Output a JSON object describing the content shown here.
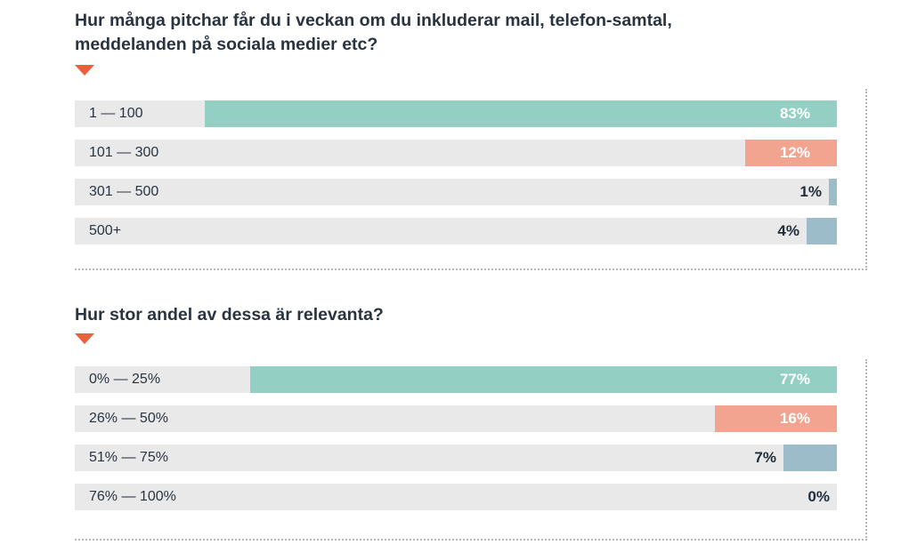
{
  "charts": [
    {
      "title": "Hur många pitchar får du i veckan om du inkluderar mail, telefon-samtal, meddelanden på sociala medier etc?",
      "rows": [
        {
          "label": "1 — 100",
          "pct_text": "83%"
        },
        {
          "label": "101 — 300",
          "pct_text": "12%"
        },
        {
          "label": "301 — 500",
          "pct_text": "1%"
        },
        {
          "label": "500+",
          "pct_text": "4%"
        }
      ]
    },
    {
      "title": "Hur stor andel av dessa är relevanta?",
      "rows": [
        {
          "label": "0% — 25%",
          "pct_text": "77%"
        },
        {
          "label": "26% — 50%",
          "pct_text": "16%"
        },
        {
          "label": "51% — 75%",
          "pct_text": "7%"
        },
        {
          "label": "76% — 100%",
          "pct_text": "0%"
        }
      ]
    }
  ],
  "colors": {
    "bar_colors": [
      "#93cfc2",
      "#f3a490",
      "#9cbcc9",
      "#9cbcc9"
    ],
    "label_on_bar": "#ffffff",
    "label_off_bar": "#1f2d3a",
    "arrow": "#e8603c",
    "track": "#e9e9e9"
  },
  "chart_data": [
    {
      "type": "bar",
      "orientation": "horizontal",
      "title": "Hur många pitchar får du i veckan om du inkluderar mail, telefon-samtal, meddelanden på sociala medier etc?",
      "categories": [
        "1 — 100",
        "101 — 300",
        "301 — 500",
        "500+"
      ],
      "values": [
        83,
        12,
        1,
        4
      ],
      "unit": "%",
      "xlim": [
        0,
        100
      ],
      "grid": false,
      "legend": "none"
    },
    {
      "type": "bar",
      "orientation": "horizontal",
      "title": "Hur stor andel av dessa är relevanta?",
      "categories": [
        "0% — 25%",
        "26% — 50%",
        "51% — 75%",
        "76% — 100%"
      ],
      "values": [
        77,
        16,
        7,
        0
      ],
      "unit": "%",
      "xlim": [
        0,
        100
      ],
      "grid": false,
      "legend": "none"
    }
  ]
}
